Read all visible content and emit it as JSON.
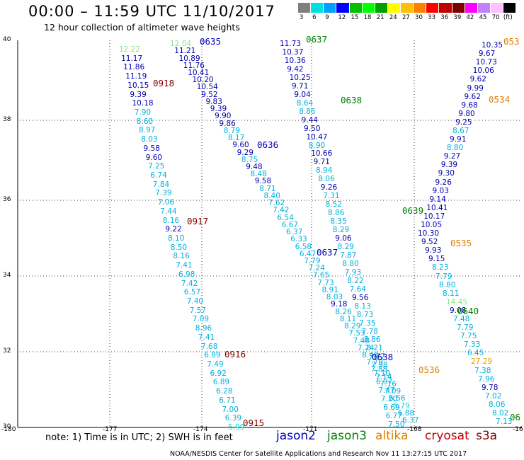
{
  "title": "00:00 – 11:59 UTC 11/10/2017",
  "subtitle": "12 hour collection of altimeter wave heights",
  "colorbar": {
    "colors": [
      "#7f7f7f",
      "#00e0e0",
      "#00a0ff",
      "#0000ff",
      "#00c000",
      "#00ff00",
      "#00a000",
      "#ffff00",
      "#ffc000",
      "#ff8000",
      "#ff0000",
      "#c00000",
      "#800000",
      "#ff00ff",
      "#c080ff",
      "#ffc0ff",
      "#000000"
    ],
    "labels": [
      "3",
      "6",
      "9",
      "12",
      "15",
      "18",
      "21",
      "24",
      "27",
      "30",
      "33",
      "36",
      "39",
      "42",
      "45",
      "70",
      "(ft)"
    ]
  },
  "map": {
    "lat_labels": [
      "40",
      "38",
      "36",
      "34",
      "32",
      "30"
    ],
    "lon_labels": [
      "-180",
      "-177",
      "-174",
      "-171",
      "-168",
      "-16"
    ]
  },
  "observations": [
    {
      "t": "12.22",
      "c": "#90e090"
    },
    {
      "t": "11.17",
      "c": "#0000b0"
    },
    {
      "t": "11.86",
      "c": "#0000b0"
    },
    {
      "t": "11.19",
      "c": "#0000b0"
    },
    {
      "t": "10.15",
      "c": "#0000b0"
    },
    {
      "t": "9.39",
      "c": "#0000b0"
    },
    {
      "t": "10.18",
      "c": "#0000b0"
    },
    {
      "t": "7.90",
      "c": "#00b0e0"
    },
    {
      "t": "8.60",
      "c": "#00b0e0"
    },
    {
      "t": "8.97",
      "c": "#00b0e0"
    },
    {
      "t": "8.03",
      "c": "#00b0e0"
    },
    {
      "t": "9.58",
      "c": "#0000b0"
    },
    {
      "t": "9.60",
      "c": "#0000b0"
    },
    {
      "t": "7.25",
      "c": "#00b0e0"
    },
    {
      "t": "6.74",
      "c": "#00b0e0"
    },
    {
      "t": "7.84",
      "c": "#00b0e0"
    },
    {
      "t": "7.39",
      "c": "#00b0e0"
    },
    {
      "t": "7.06",
      "c": "#00b0e0"
    },
    {
      "t": "7.44",
      "c": "#00b0e0"
    },
    {
      "t": "8.16",
      "c": "#00b0e0"
    },
    {
      "t": "9.22",
      "c": "#0000b0"
    },
    {
      "t": "8.10",
      "c": "#00b0e0"
    },
    {
      "t": "8.50",
      "c": "#00b0e0"
    },
    {
      "t": "8.16",
      "c": "#00b0e0"
    },
    {
      "t": "7.41",
      "c": "#00b0e0"
    },
    {
      "t": "6.98",
      "c": "#00b0e0"
    },
    {
      "t": "7.42",
      "c": "#00b0e0"
    },
    {
      "t": "6.57",
      "c": "#00b0e0"
    },
    {
      "t": "7.40",
      "c": "#00b0e0"
    },
    {
      "t": "7.57",
      "c": "#00b0e0"
    },
    {
      "t": "7.09",
      "c": "#00b0e0"
    },
    {
      "t": "8.96",
      "c": "#00b0e0"
    },
    {
      "t": "7.41",
      "c": "#00b0e0"
    },
    {
      "t": "7.68",
      "c": "#00b0e0"
    },
    {
      "t": "6.89",
      "c": "#00b0e0"
    },
    {
      "t": "7.49",
      "c": "#00b0e0"
    },
    {
      "t": "6.92",
      "c": "#00b0e0"
    },
    {
      "t": "6.89",
      "c": "#00b0e0"
    },
    {
      "t": "6.28",
      "c": "#00b0e0"
    },
    {
      "t": "6.71",
      "c": "#00b0e0"
    },
    {
      "t": "7.00",
      "c": "#00b0e0"
    },
    {
      "t": "6.39",
      "c": "#00b0e0"
    },
    {
      "t": "5.99",
      "c": "#00e0e0"
    },
    {
      "t": "12.04",
      "c": "#90e090"
    },
    {
      "t": "11.21",
      "c": "#0000b0"
    },
    {
      "t": "10.89",
      "c": "#0000b0"
    },
    {
      "t": "11.76",
      "c": "#0000b0"
    },
    {
      "t": "10.41",
      "c": "#0000b0"
    },
    {
      "t": "10.20",
      "c": "#0000b0"
    },
    {
      "t": "10.54",
      "c": "#0000b0"
    },
    {
      "t": "9.52",
      "c": "#0000b0"
    },
    {
      "t": "9.83",
      "c": "#0000b0"
    },
    {
      "t": "9.39",
      "c": "#0000b0"
    },
    {
      "t": "9.90",
      "c": "#0000b0"
    },
    {
      "t": "9.86",
      "c": "#0000b0"
    },
    {
      "t": "8.79",
      "c": "#00b0e0"
    },
    {
      "t": "8.17",
      "c": "#00b0e0"
    },
    {
      "t": "9.60",
      "c": "#0000b0"
    },
    {
      "t": "9.29",
      "c": "#0000b0"
    },
    {
      "t": "8.75",
      "c": "#00b0e0"
    },
    {
      "t": "9.48",
      "c": "#0000b0"
    },
    {
      "t": "8.48",
      "c": "#00b0e0"
    },
    {
      "t": "9.58",
      "c": "#0000b0"
    },
    {
      "t": "8.71",
      "c": "#00b0e0"
    },
    {
      "t": "8.40",
      "c": "#00b0e0"
    },
    {
      "t": "7.62",
      "c": "#00b0e0"
    },
    {
      "t": "7.42",
      "c": "#00b0e0"
    },
    {
      "t": "6.54",
      "c": "#00b0e0"
    },
    {
      "t": "6.67",
      "c": "#00b0e0"
    },
    {
      "t": "6.37",
      "c": "#00b0e0"
    },
    {
      "t": "6.33",
      "c": "#00b0e0"
    },
    {
      "t": "6.58",
      "c": "#00b0e0"
    },
    {
      "t": "6.47",
      "c": "#00b0e0"
    },
    {
      "t": "7.79",
      "c": "#00b0e0"
    },
    {
      "t": "7.24",
      "c": "#00b0e0"
    },
    {
      "t": "7.65",
      "c": "#00b0e0"
    },
    {
      "t": "7.73",
      "c": "#00b0e0"
    },
    {
      "t": "8.91",
      "c": "#00b0e0"
    },
    {
      "t": "8.03",
      "c": "#00b0e0"
    },
    {
      "t": "9.18",
      "c": "#0000b0"
    },
    {
      "t": "8.26",
      "c": "#00b0e0"
    },
    {
      "t": "8.11",
      "c": "#00b0e0"
    },
    {
      "t": "8.29",
      "c": "#00b0e0"
    },
    {
      "t": "7.53",
      "c": "#00b0e0"
    },
    {
      "t": "7.48",
      "c": "#00b0e0"
    },
    {
      "t": "7.24",
      "c": "#00b0e0"
    },
    {
      "t": "8.46",
      "c": "#00b0e0"
    },
    {
      "t": "7.79",
      "c": "#00b0e0"
    },
    {
      "t": "7.88",
      "c": "#00b0e0"
    },
    {
      "t": "7.14",
      "c": "#00b0e0"
    },
    {
      "t": "7.16",
      "c": "#00b0e0"
    },
    {
      "t": "7.09",
      "c": "#00b0e0"
    },
    {
      "t": "6.56",
      "c": "#00b0e0"
    },
    {
      "t": "5.79",
      "c": "#00e0e0"
    },
    {
      "t": "6.88",
      "c": "#00b0e0"
    },
    {
      "t": "6.37",
      "c": "#00b0e0"
    },
    {
      "t": "11.73",
      "c": "#0000b0"
    },
    {
      "t": "10.37",
      "c": "#0000b0"
    },
    {
      "t": "10.36",
      "c": "#0000b0"
    },
    {
      "t": "9.42",
      "c": "#0000b0"
    },
    {
      "t": "10.25",
      "c": "#0000b0"
    },
    {
      "t": "9.71",
      "c": "#0000b0"
    },
    {
      "t": "9.04",
      "c": "#0000b0"
    },
    {
      "t": "8.64",
      "c": "#00b0e0"
    },
    {
      "t": "8.86",
      "c": "#00b0e0"
    },
    {
      "t": "9.44",
      "c": "#0000b0"
    },
    {
      "t": "9.50",
      "c": "#0000b0"
    },
    {
      "t": "10.47",
      "c": "#0000b0"
    },
    {
      "t": "8.90",
      "c": "#00b0e0"
    },
    {
      "t": "10.66",
      "c": "#0000b0"
    },
    {
      "t": "9.71",
      "c": "#0000b0"
    },
    {
      "t": "8.94",
      "c": "#00b0e0"
    },
    {
      "t": "8.06",
      "c": "#00b0e0"
    },
    {
      "t": "9.26",
      "c": "#0000b0"
    },
    {
      "t": "7.31",
      "c": "#00b0e0"
    },
    {
      "t": "8.52",
      "c": "#00b0e0"
    },
    {
      "t": "8.86",
      "c": "#00b0e0"
    },
    {
      "t": "8.35",
      "c": "#00b0e0"
    },
    {
      "t": "8.29",
      "c": "#00b0e0"
    },
    {
      "t": "9.06",
      "c": "#0000b0"
    },
    {
      "t": "8.29",
      "c": "#00b0e0"
    },
    {
      "t": "7.87",
      "c": "#00b0e0"
    },
    {
      "t": "8.80",
      "c": "#00b0e0"
    },
    {
      "t": "7.93",
      "c": "#00b0e0"
    },
    {
      "t": "8.22",
      "c": "#00b0e0"
    },
    {
      "t": "7.64",
      "c": "#00b0e0"
    },
    {
      "t": "9.56",
      "c": "#0000b0"
    },
    {
      "t": "8.13",
      "c": "#00b0e0"
    },
    {
      "t": "8.73",
      "c": "#00b0e0"
    },
    {
      "t": "7.35",
      "c": "#00b0e0"
    },
    {
      "t": "7.78",
      "c": "#00b0e0"
    },
    {
      "t": "8.86",
      "c": "#00b0e0"
    },
    {
      "t": "8.21",
      "c": "#00b0e0"
    },
    {
      "t": "7.77",
      "c": "#00b0e0"
    },
    {
      "t": "7.98",
      "c": "#00b0e0"
    },
    {
      "t": "7.10",
      "c": "#00b0e0"
    },
    {
      "t": "6.97",
      "c": "#00b0e0"
    },
    {
      "t": "7.47",
      "c": "#00b0e0"
    },
    {
      "t": "7.20",
      "c": "#00b0e0"
    },
    {
      "t": "6.69",
      "c": "#00b0e0"
    },
    {
      "t": "6.77",
      "c": "#00b0e0"
    },
    {
      "t": "7.50",
      "c": "#00b0e0"
    },
    {
      "t": "10.35",
      "c": "#0000b0"
    },
    {
      "t": "9.67",
      "c": "#0000b0"
    },
    {
      "t": "10.73",
      "c": "#0000b0"
    },
    {
      "t": "10.06",
      "c": "#0000b0"
    },
    {
      "t": "9.62",
      "c": "#0000b0"
    },
    {
      "t": "9.99",
      "c": "#0000b0"
    },
    {
      "t": "9.62",
      "c": "#0000b0"
    },
    {
      "t": "9.68",
      "c": "#0000b0"
    },
    {
      "t": "9.80",
      "c": "#0000b0"
    },
    {
      "t": "9.25",
      "c": "#0000b0"
    },
    {
      "t": "8.67",
      "c": "#00b0e0"
    },
    {
      "t": "9.91",
      "c": "#0000b0"
    },
    {
      "t": "8.80",
      "c": "#00b0e0"
    },
    {
      "t": "9.27",
      "c": "#0000b0"
    },
    {
      "t": "9.39",
      "c": "#0000b0"
    },
    {
      "t": "9.30",
      "c": "#0000b0"
    },
    {
      "t": "9.26",
      "c": "#0000b0"
    },
    {
      "t": "9.03",
      "c": "#0000b0"
    },
    {
      "t": "9.14",
      "c": "#0000b0"
    },
    {
      "t": "10.41",
      "c": "#0000b0"
    },
    {
      "t": "10.17",
      "c": "#0000b0"
    },
    {
      "t": "10.05",
      "c": "#0000b0"
    },
    {
      "t": "10.30",
      "c": "#0000b0"
    },
    {
      "t": "9.52",
      "c": "#0000b0"
    },
    {
      "t": "9.93",
      "c": "#0000b0"
    },
    {
      "t": "9.15",
      "c": "#0000b0"
    },
    {
      "t": "8.23",
      "c": "#00b0e0"
    },
    {
      "t": "7.79",
      "c": "#00b0e0"
    },
    {
      "t": "8.80",
      "c": "#00b0e0"
    },
    {
      "t": "8.11",
      "c": "#00b0e0"
    },
    {
      "t": "14.45",
      "c": "#90e090"
    },
    {
      "t": "9.08",
      "c": "#0000b0"
    },
    {
      "t": "7.48",
      "c": "#00b0e0"
    },
    {
      "t": "7.79",
      "c": "#00b0e0"
    },
    {
      "t": "7.75",
      "c": "#00b0e0"
    },
    {
      "t": "7.33",
      "c": "#00b0e0"
    },
    {
      "t": "6.45",
      "c": "#00b0e0"
    },
    {
      "t": "27.29",
      "c": "#e0a000"
    },
    {
      "t": "7.38",
      "c": "#00b0e0"
    },
    {
      "t": "7.96",
      "c": "#00b0e0"
    },
    {
      "t": "9.78",
      "c": "#0000b0"
    },
    {
      "t": "7.02",
      "c": "#00b0e0"
    },
    {
      "t": "8.06",
      "c": "#00b0e0"
    },
    {
      "t": "8.02",
      "c": "#00b0e0"
    },
    {
      "t": "7.13",
      "c": "#00b0e0"
    }
  ],
  "timestamps": [
    {
      "t": "0635",
      "c": "#0000b0"
    },
    {
      "t": "0918",
      "c": "#800000"
    },
    {
      "t": "0636",
      "c": "#0000b0"
    },
    {
      "t": "0917",
      "c": "#800000"
    },
    {
      "t": "0637",
      "c": "#008000"
    },
    {
      "t": "0638",
      "c": "#008000"
    },
    {
      "t": "0637",
      "c": "#0000b0"
    },
    {
      "t": "0639",
      "c": "#008000"
    },
    {
      "t": "0916",
      "c": "#800000"
    },
    {
      "t": "0638",
      "c": "#0000b0"
    },
    {
      "t": "0915",
      "c": "#800000"
    },
    {
      "t": "053",
      "c": "#e08000"
    },
    {
      "t": "0534",
      "c": "#e08000"
    },
    {
      "t": "0535",
      "c": "#e08000"
    },
    {
      "t": "0640",
      "c": "#008000"
    },
    {
      "t": "0536",
      "c": "#e08000"
    },
    {
      "t": "06",
      "c": "#008000"
    }
  ],
  "note": "note:  1) Time is in UTC;  2) SWH is in feet",
  "legend": [
    {
      "name": "jason2",
      "color": "#0000c0"
    },
    {
      "name": "jason3",
      "color": "#008000"
    },
    {
      "name": "altika",
      "color": "#e08000"
    },
    {
      "name": "cryosat",
      "color": "#c00000"
    },
    {
      "name": "s3a",
      "color": "#800000"
    }
  ],
  "credit": "NOAA/NESDIS Center for Satellite Applications and Research    Nov 11 13:27:15 UTC 2017"
}
